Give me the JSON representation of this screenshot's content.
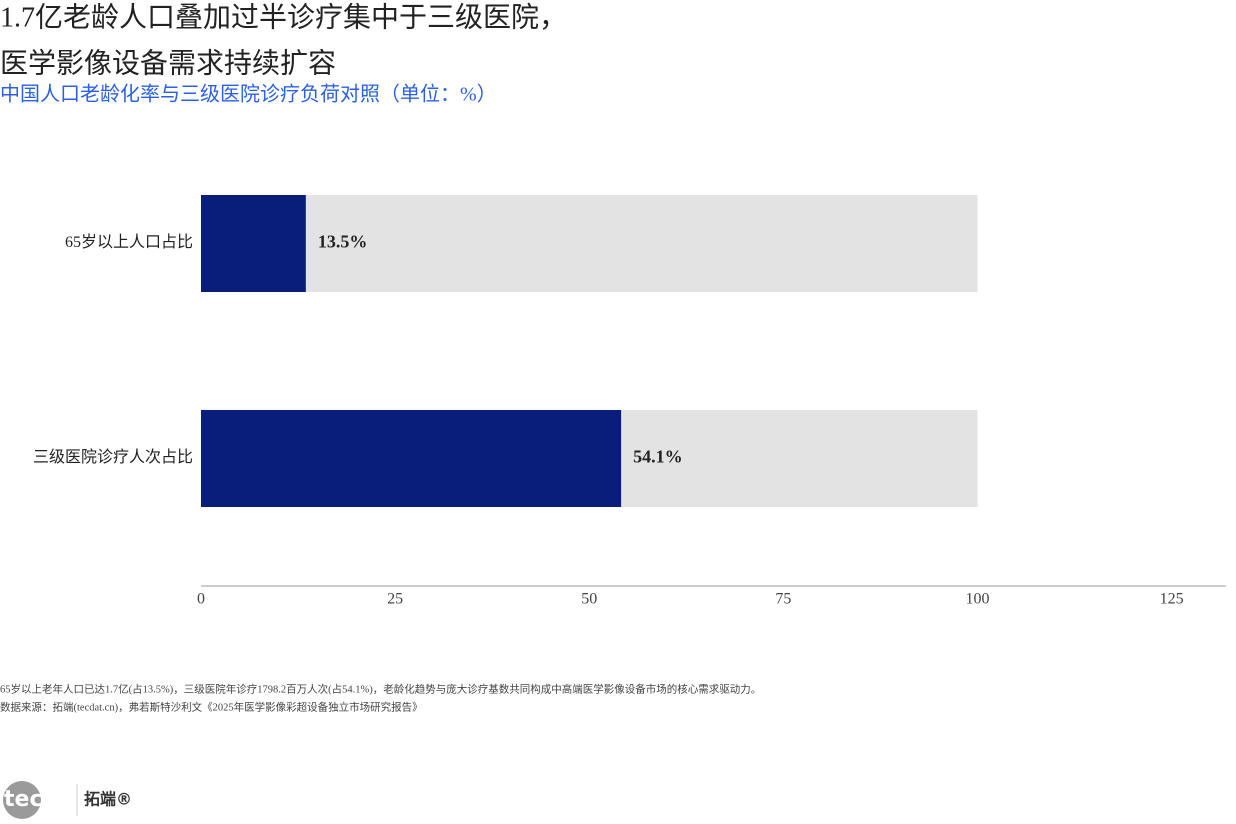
{
  "chart_data": {
    "type": "hbar",
    "title_lines": [
      "1.7亿老龄人口叠加过半诊疗集中于三级医院，",
      "医学影像设备需求持续扩容"
    ],
    "subtitle": "中国人口老龄化率与三级医院诊疗负荷对照（单位：%）",
    "categories": [
      "65岁以上人口占比",
      "三级医院诊疗人次占比"
    ],
    "values": [
      13.5,
      54.1
    ],
    "value_labels": [
      "13.5%",
      "54.1%"
    ],
    "background_values": [
      100,
      100
    ],
    "color": "#081e78",
    "background_color": "#e3e3e3",
    "xlim": [
      0,
      132
    ],
    "xticks": [
      0,
      25,
      50,
      75,
      100,
      125
    ],
    "grid": false
  },
  "footer": {
    "notes": [
      "65岁以上老年人口已达1.7亿(占13.5%)，三级医院年诊疗1798.2百万人次(占54.1%)，老龄化趋势与庞大诊疗基数共同构成中高端医学影像设备市场的核心需求驱动力。",
      "数据来源：拓端(tecdat.cn)，弗若斯特沙利文《2025年医学影像彩超设备独立市场研究报告》"
    ],
    "logo_text": "tecdat",
    "brand": "拓端®"
  }
}
